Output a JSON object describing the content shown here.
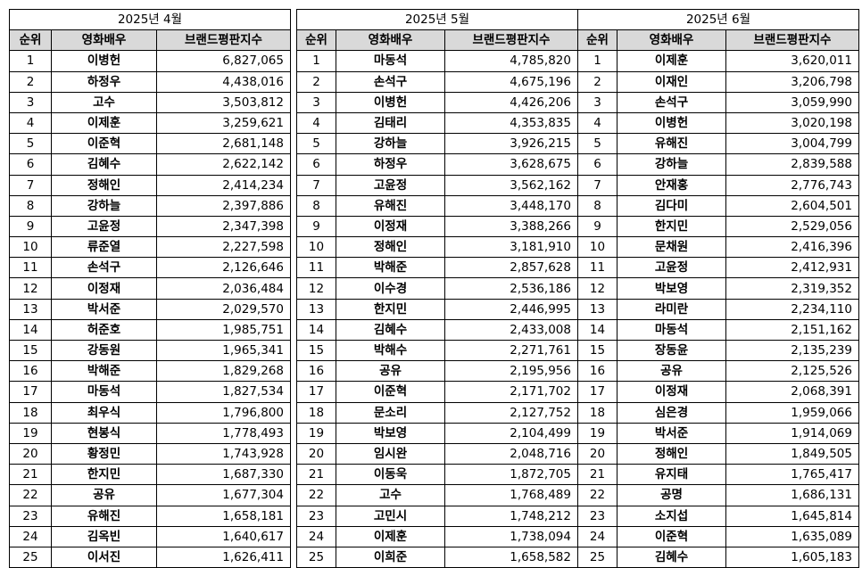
{
  "tables": [
    {
      "month": "2025년 4월",
      "headers": [
        "순위",
        "영화배우",
        "브랜드평판지수"
      ],
      "rows": [
        [
          "1",
          "이병헌",
          "6,827,065"
        ],
        [
          "2",
          "하정우",
          "4,438,016"
        ],
        [
          "3",
          "고수",
          "3,503,812"
        ],
        [
          "4",
          "이제훈",
          "3,259,621"
        ],
        [
          "5",
          "이준혁",
          "2,681,148"
        ],
        [
          "6",
          "김혜수",
          "2,622,142"
        ],
        [
          "7",
          "정해인",
          "2,414,234"
        ],
        [
          "8",
          "강하늘",
          "2,397,886"
        ],
        [
          "9",
          "고윤정",
          "2,347,398"
        ],
        [
          "10",
          "류준열",
          "2,227,598"
        ],
        [
          "11",
          "손석구",
          "2,126,646"
        ],
        [
          "12",
          "이정재",
          "2,036,484"
        ],
        [
          "13",
          "박서준",
          "2,029,570"
        ],
        [
          "14",
          "허준호",
          "1,985,751"
        ],
        [
          "15",
          "강동원",
          "1,965,341"
        ],
        [
          "16",
          "박해준",
          "1,829,268"
        ],
        [
          "17",
          "마동석",
          "1,827,534"
        ],
        [
          "18",
          "최우식",
          "1,796,800"
        ],
        [
          "19",
          "현봉식",
          "1,778,493"
        ],
        [
          "20",
          "황정민",
          "1,743,928"
        ],
        [
          "21",
          "한지민",
          "1,687,330"
        ],
        [
          "22",
          "공유",
          "1,677,304"
        ],
        [
          "23",
          "유해진",
          "1,658,181"
        ],
        [
          "24",
          "김옥빈",
          "1,640,617"
        ],
        [
          "25",
          "이서진",
          "1,626,411"
        ]
      ]
    },
    {
      "month": "2025년 5월",
      "headers": [
        "순위",
        "영화배우",
        "브랜드평판지수"
      ],
      "rows": [
        [
          "1",
          "마동석",
          "4,785,820"
        ],
        [
          "2",
          "손석구",
          "4,675,196"
        ],
        [
          "3",
          "이병헌",
          "4,426,206"
        ],
        [
          "4",
          "김태리",
          "4,353,835"
        ],
        [
          "5",
          "강하늘",
          "3,926,215"
        ],
        [
          "6",
          "하정우",
          "3,628,675"
        ],
        [
          "7",
          "고윤정",
          "3,562,162"
        ],
        [
          "8",
          "유해진",
          "3,448,170"
        ],
        [
          "9",
          "이정재",
          "3,388,266"
        ],
        [
          "10",
          "정해인",
          "3,181,910"
        ],
        [
          "11",
          "박해준",
          "2,857,628"
        ],
        [
          "12",
          "이수경",
          "2,536,186"
        ],
        [
          "13",
          "한지민",
          "2,446,995"
        ],
        [
          "14",
          "김혜수",
          "2,433,008"
        ],
        [
          "15",
          "박해수",
          "2,271,761"
        ],
        [
          "16",
          "공유",
          "2,195,956"
        ],
        [
          "17",
          "이준혁",
          "2,171,702"
        ],
        [
          "18",
          "문소리",
          "2,127,752"
        ],
        [
          "19",
          "박보영",
          "2,104,499"
        ],
        [
          "20",
          "임시완",
          "2,048,716"
        ],
        [
          "21",
          "이동욱",
          "1,872,705"
        ],
        [
          "22",
          "고수",
          "1,768,489"
        ],
        [
          "23",
          "고민시",
          "1,748,212"
        ],
        [
          "24",
          "이제훈",
          "1,738,094"
        ],
        [
          "25",
          "이희준",
          "1,658,582"
        ]
      ]
    },
    {
      "month": "2025년 6월",
      "headers": [
        "순위",
        "영화배우",
        "브랜드평판지수"
      ],
      "rows": [
        [
          "1",
          "이제훈",
          "3,620,011"
        ],
        [
          "2",
          "이재인",
          "3,206,798"
        ],
        [
          "3",
          "손석구",
          "3,059,990"
        ],
        [
          "4",
          "이병헌",
          "3,020,198"
        ],
        [
          "5",
          "유해진",
          "3,004,799"
        ],
        [
          "6",
          "강하늘",
          "2,839,588"
        ],
        [
          "7",
          "안재홍",
          "2,776,743"
        ],
        [
          "8",
          "김다미",
          "2,604,501"
        ],
        [
          "9",
          "한지민",
          "2,529,056"
        ],
        [
          "10",
          "문채원",
          "2,416,396"
        ],
        [
          "11",
          "고윤정",
          "2,412,931"
        ],
        [
          "12",
          "박보영",
          "2,319,352"
        ],
        [
          "13",
          "라미란",
          "2,234,110"
        ],
        [
          "14",
          "마동석",
          "2,151,162"
        ],
        [
          "15",
          "장동윤",
          "2,135,239"
        ],
        [
          "16",
          "공유",
          "2,125,526"
        ],
        [
          "17",
          "이정재",
          "2,068,391"
        ],
        [
          "18",
          "심은경",
          "1,959,066"
        ],
        [
          "19",
          "박서준",
          "1,914,069"
        ],
        [
          "20",
          "정해인",
          "1,849,505"
        ],
        [
          "21",
          "유지태",
          "1,765,417"
        ],
        [
          "22",
          "공명",
          "1,686,131"
        ],
        [
          "23",
          "소지섭",
          "1,645,814"
        ],
        [
          "24",
          "이준혁",
          "1,635,089"
        ],
        [
          "25",
          "김혜수",
          "1,605,183"
        ]
      ]
    }
  ]
}
